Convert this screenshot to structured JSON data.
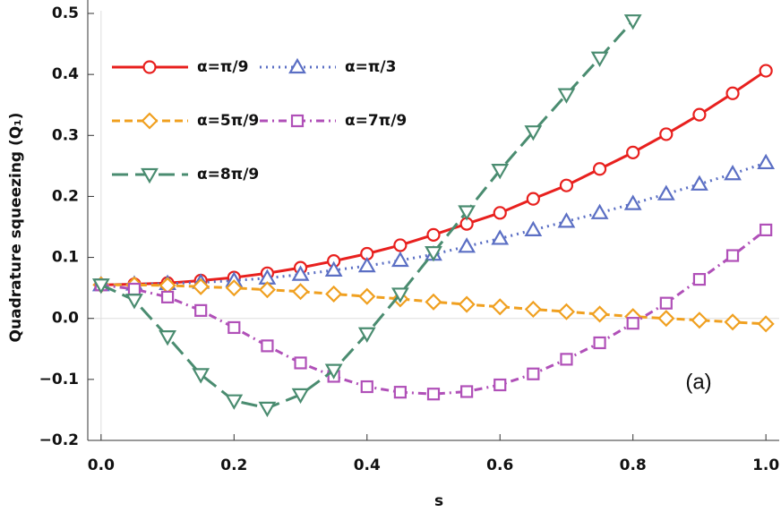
{
  "chart_data": {
    "type": "line",
    "x_label": "s",
    "y_label": "Quadrature squeezing (Q₁)",
    "annotation": "(a)",
    "x": [
      0,
      0.05,
      0.1,
      0.15,
      0.2,
      0.25,
      0.3,
      0.35,
      0.4,
      0.45,
      0.5,
      0.55,
      0.6,
      0.65,
      0.7,
      0.75,
      0.8,
      0.85,
      0.9,
      0.95,
      1.0
    ],
    "series": [
      {
        "name": "α=π/9",
        "color": "#e8201e",
        "marker": "circle",
        "dash": "solid",
        "values": [
          0.055,
          0.056,
          0.058,
          0.062,
          0.067,
          0.074,
          0.083,
          0.094,
          0.106,
          0.12,
          0.137,
          0.155,
          0.173,
          0.196,
          0.218,
          0.245,
          0.272,
          0.302,
          0.334,
          0.369,
          0.406
        ]
      },
      {
        "name": "α=π/3",
        "color": "#5b6fc4",
        "marker": "triangle-up",
        "dash": "dotted",
        "values": [
          0.055,
          0.056,
          0.057,
          0.059,
          0.062,
          0.066,
          0.072,
          0.079,
          0.086,
          0.095,
          0.105,
          0.118,
          0.131,
          0.145,
          0.159,
          0.173,
          0.188,
          0.204,
          0.22,
          0.237,
          0.255
        ]
      },
      {
        "name": "α=5π/9",
        "color": "#f0a020",
        "marker": "diamond",
        "dash": "dashed",
        "values": [
          0.055,
          0.055,
          0.054,
          0.052,
          0.05,
          0.047,
          0.044,
          0.04,
          0.036,
          0.032,
          0.027,
          0.023,
          0.019,
          0.015,
          0.011,
          0.007,
          0.003,
          0.0,
          -0.003,
          -0.006,
          -0.009
        ]
      },
      {
        "name": "α=7π/9",
        "color": "#b050b8",
        "marker": "square",
        "dash": "dashdot",
        "values": [
          0.055,
          0.048,
          0.035,
          0.013,
          -0.015,
          -0.045,
          -0.073,
          -0.095,
          -0.112,
          -0.121,
          -0.124,
          -0.12,
          -0.109,
          -0.091,
          -0.067,
          -0.04,
          -0.008,
          0.025,
          0.064,
          0.103,
          0.145
        ]
      },
      {
        "name": "α=8π/9",
        "color": "#4a8c70",
        "marker": "triangle-down",
        "dash": "longdash",
        "values": [
          0.055,
          0.03,
          -0.03,
          -0.092,
          -0.135,
          -0.147,
          -0.125,
          -0.085,
          -0.025,
          0.04,
          0.108,
          0.175,
          0.243,
          0.306,
          0.367,
          0.427,
          0.488,
          null,
          null,
          null,
          null
        ]
      }
    ],
    "xlim": [
      -0.02,
      1.02
    ],
    "ylim": [
      -0.2,
      0.5
    ],
    "xticks": [
      {
        "value": 0,
        "label": "0.0"
      },
      {
        "value": 0.2,
        "label": "0.2"
      },
      {
        "value": 0.4,
        "label": "0.4"
      },
      {
        "value": 0.6,
        "label": "0.6"
      },
      {
        "value": 0.8,
        "label": "0.8"
      },
      {
        "value": 1.0,
        "label": "1.0"
      }
    ],
    "yticks": [
      {
        "value": -0.2,
        "label": "−0.2"
      },
      {
        "value": -0.1,
        "label": "−0.1"
      },
      {
        "value": 0,
        "label": "0.0"
      },
      {
        "value": 0.1,
        "label": "0.1"
      },
      {
        "value": 0.2,
        "label": "0.2"
      },
      {
        "value": 0.3,
        "label": "0.3"
      },
      {
        "value": 0.4,
        "label": "0.4"
      },
      {
        "value": 0.5,
        "label": "0.5"
      }
    ],
    "legend": "upper left"
  }
}
